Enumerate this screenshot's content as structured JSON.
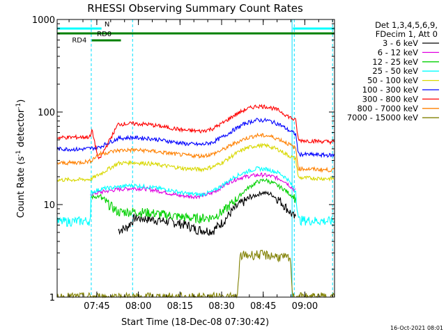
{
  "chart_data": {
    "type": "line",
    "title": "RHESSI Observing Summary Count Rates",
    "xlabel": "Start Time (18-Dec-08 07:30:42)",
    "ylabel_main": "Count Rate (s",
    "ylabel_sup1": "-1",
    "ylabel_mid": " detector",
    "ylabel_sup2": "-1",
    "ylabel_end": ")",
    "y_scale": "log",
    "ylim": [
      1,
      1000
    ],
    "xlim_minutes": [
      0,
      100
    ],
    "x_ticks": [
      {
        "label": "07:45",
        "minute": 14.3
      },
      {
        "label": "08:00",
        "minute": 29.3
      },
      {
        "label": "08:15",
        "minute": 44.3
      },
      {
        "label": "08:30",
        "minute": 59.3
      },
      {
        "label": "08:45",
        "minute": 74.3
      },
      {
        "label": "09:00",
        "minute": 89.3
      }
    ],
    "y_ticks": [
      {
        "label": "1",
        "value": 1
      },
      {
        "label": "10",
        "value": 10
      },
      {
        "label": "100",
        "value": 100
      },
      {
        "label": "1000",
        "value": 1000
      }
    ],
    "legend_header": [
      "Det 1,3,4,5,6,9,",
      "FDecim 1, Att 0"
    ],
    "legend_placement": "right",
    "series": [
      {
        "name": "3 - 6 keV",
        "color": "#000000",
        "points": [
          [
            22,
            5.3
          ],
          [
            25,
            5.6
          ],
          [
            28,
            7.2
          ],
          [
            33,
            7.0
          ],
          [
            40,
            6.6
          ],
          [
            47,
            6.0
          ],
          [
            50,
            5.4
          ],
          [
            56,
            5.2
          ],
          [
            60,
            6.6
          ],
          [
            63,
            8.5
          ],
          [
            66,
            10.2
          ],
          [
            70,
            12.0
          ],
          [
            74,
            13.5
          ],
          [
            77,
            13.0
          ],
          [
            80,
            11.3
          ],
          [
            83,
            9.0
          ],
          [
            86,
            7.0
          ]
        ]
      },
      {
        "name": "6 - 12 keV",
        "color": "#e000e0",
        "points": [
          [
            12,
            13.0
          ],
          [
            18,
            14.0
          ],
          [
            22,
            14.6
          ],
          [
            27,
            15.0
          ],
          [
            32,
            14.8
          ],
          [
            38,
            13.8
          ],
          [
            44,
            12.5
          ],
          [
            50,
            12.2
          ],
          [
            55,
            13.0
          ],
          [
            58,
            14.5
          ],
          [
            62,
            17.5
          ],
          [
            66,
            19.5
          ],
          [
            70,
            20.5
          ],
          [
            74,
            21.0
          ],
          [
            78,
            20.0
          ],
          [
            82,
            18.0
          ],
          [
            86,
            14.0
          ]
        ]
      },
      {
        "name": "12 - 25 keV",
        "color": "#00d000",
        "points": [
          [
            12,
            12.0
          ],
          [
            15,
            12.3
          ],
          [
            22,
            8.3
          ],
          [
            27,
            8.4
          ],
          [
            33,
            8.2
          ],
          [
            40,
            7.7
          ],
          [
            46,
            7.3
          ],
          [
            50,
            7.1
          ],
          [
            56,
            7.3
          ],
          [
            60,
            8.5
          ],
          [
            64,
            11.0
          ],
          [
            68,
            14.5
          ],
          [
            72,
            17.5
          ],
          [
            75,
            18.5
          ],
          [
            78,
            17.0
          ],
          [
            82,
            14.5
          ],
          [
            86,
            11.5
          ]
        ]
      },
      {
        "name": "25 - 50 keV",
        "color": "#00ffff",
        "points": [
          [
            0,
            6.5
          ],
          [
            6,
            6.6
          ],
          [
            12,
            6.7
          ],
          [
            12.2,
            13.5
          ],
          [
            16,
            14.8
          ],
          [
            22,
            15.5
          ],
          [
            27,
            16.2
          ],
          [
            33,
            15.5
          ],
          [
            40,
            14.5
          ],
          [
            46,
            13.2
          ],
          [
            52,
            12.8
          ],
          [
            56,
            13.8
          ],
          [
            60,
            16.5
          ],
          [
            64,
            20.0
          ],
          [
            68,
            22.5
          ],
          [
            72,
            24.5
          ],
          [
            76,
            24.0
          ],
          [
            80,
            22.0
          ],
          [
            83,
            19.0
          ],
          [
            86,
            14.0
          ],
          [
            87,
            6.8
          ],
          [
            100,
            6.6
          ]
        ]
      },
      {
        "name": "50 - 100 keV",
        "color": "#d8d800",
        "points": [
          [
            0,
            18.5
          ],
          [
            8,
            18.6
          ],
          [
            12,
            18.8
          ],
          [
            15,
            21.0
          ],
          [
            22,
            28.0
          ],
          [
            27,
            28.5
          ],
          [
            33,
            27.8
          ],
          [
            40,
            26.0
          ],
          [
            46,
            24.5
          ],
          [
            52,
            24.0
          ],
          [
            56,
            25.5
          ],
          [
            60,
            29.0
          ],
          [
            64,
            35.0
          ],
          [
            68,
            40.5
          ],
          [
            72,
            43.5
          ],
          [
            76,
            43.0
          ],
          [
            80,
            39.0
          ],
          [
            83,
            34.5
          ],
          [
            86,
            31.0
          ],
          [
            87,
            19.5
          ],
          [
            100,
            19.0
          ]
        ]
      },
      {
        "name": "100 - 300 keV",
        "color": "#0000ff",
        "points": [
          [
            0,
            40.0
          ],
          [
            8,
            39.5
          ],
          [
            12,
            40.5
          ],
          [
            15,
            41.5
          ],
          [
            22,
            52.0
          ],
          [
            27,
            53.0
          ],
          [
            33,
            52.0
          ],
          [
            40,
            48.5
          ],
          [
            46,
            45.5
          ],
          [
            52,
            44.5
          ],
          [
            56,
            47.0
          ],
          [
            60,
            54.5
          ],
          [
            64,
            65.0
          ],
          [
            68,
            76.0
          ],
          [
            72,
            82.0
          ],
          [
            76,
            81.0
          ],
          [
            80,
            74.0
          ],
          [
            83,
            65.0
          ],
          [
            86,
            57.5
          ],
          [
            87,
            35.0
          ],
          [
            100,
            34.0
          ]
        ]
      },
      {
        "name": "300 - 800 keV",
        "color": "#ff0000",
        "points": [
          [
            0,
            53.0
          ],
          [
            8,
            53.5
          ],
          [
            12,
            54.0
          ],
          [
            12.5,
            64.0
          ],
          [
            13,
            56.0
          ],
          [
            15,
            30.0
          ],
          [
            22,
            74.0
          ],
          [
            27,
            75.0
          ],
          [
            33,
            73.5
          ],
          [
            40,
            68.0
          ],
          [
            46,
            63.5
          ],
          [
            52,
            62.0
          ],
          [
            56,
            66.0
          ],
          [
            60,
            77.0
          ],
          [
            64,
            93.0
          ],
          [
            68,
            107.0
          ],
          [
            72,
            116.0
          ],
          [
            76,
            114.0
          ],
          [
            80,
            104.0
          ],
          [
            83,
            91.0
          ],
          [
            86,
            81.0
          ],
          [
            87,
            49.5
          ],
          [
            100,
            47.5
          ]
        ]
      },
      {
        "name": "800 - 7000 keV",
        "color": "#ff8000",
        "points": [
          [
            0,
            28.0
          ],
          [
            8,
            28.5
          ],
          [
            12,
            29.5
          ],
          [
            15,
            35.0
          ],
          [
            22,
            38.5
          ],
          [
            27,
            39.0
          ],
          [
            33,
            38.2
          ],
          [
            40,
            36.0
          ],
          [
            46,
            34.2
          ],
          [
            52,
            33.5
          ],
          [
            56,
            35.0
          ],
          [
            60,
            39.5
          ],
          [
            64,
            46.0
          ],
          [
            68,
            52.0
          ],
          [
            72,
            56.0
          ],
          [
            76,
            55.5
          ],
          [
            80,
            51.0
          ],
          [
            83,
            46.0
          ],
          [
            86,
            40.5
          ],
          [
            87,
            24.5
          ],
          [
            100,
            23.5
          ]
        ]
      },
      {
        "name": "7000 - 15000 keV",
        "color": "#808000",
        "points": [
          [
            0,
            1.0
          ],
          [
            65,
            1.0
          ],
          [
            66,
            2.8
          ],
          [
            72,
            2.9
          ],
          [
            78,
            2.8
          ],
          [
            84,
            2.6
          ],
          [
            85,
            1.0
          ],
          [
            100,
            1.0
          ]
        ]
      }
    ],
    "annotations": {
      "flag_lines": [
        {
          "label": "N",
          "color": "#00ffff",
          "segments": [
            [
              0,
              16
            ],
            [
              85,
              100
            ]
          ]
        },
        {
          "label": "RD0",
          "color": "#008000",
          "segments": [
            [
              0,
              100
            ]
          ]
        },
        {
          "label": "RD4",
          "color": "#008000",
          "segments": [
            [
              12.5,
              23
            ]
          ]
        }
      ],
      "timestamp": "16-Oct-2021 08:01"
    }
  }
}
